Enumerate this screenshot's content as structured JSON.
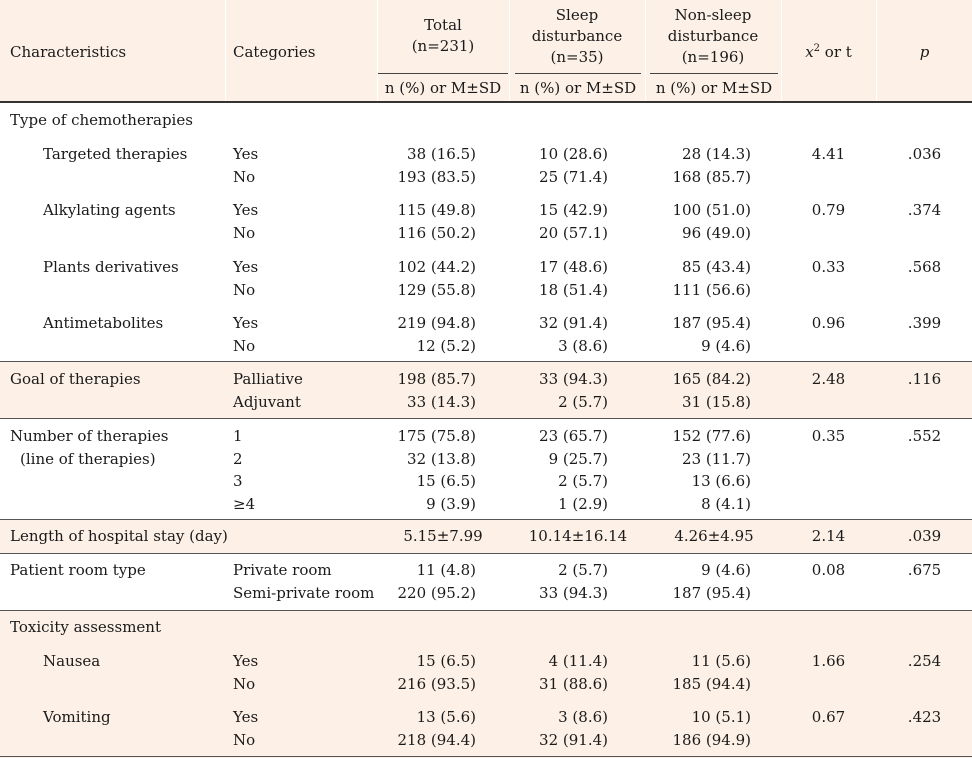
{
  "header": {
    "characteristics": "Characteristics",
    "categories": "Categories",
    "total_line1": "Total",
    "total_line2": "(n=231)",
    "sleep_line1": "Sleep",
    "sleep_line2": "disturbance",
    "sleep_line3": "(n=35)",
    "nonsleep_line1": "Non-sleep",
    "nonsleep_line2": "disturbance",
    "nonsleep_line3": "(n=196)",
    "chi_symbol": "x",
    "chi_sup": "2",
    "chi_rest": " or t",
    "p": "p",
    "sub_total": "n (%) or M±SD",
    "sub_sleep": "n (%) or M±SD",
    "sub_nonsleep": "n (%) or M±SD"
  },
  "groups": [
    {
      "label": "Type of chemotherapies"
    },
    {
      "label": "Targeted therapies",
      "categories": [
        "Yes",
        "No"
      ],
      "total": [
        "38 (16.5)",
        "193 (83.5)"
      ],
      "sleep": [
        "10 (28.6)",
        "25 (71.4)"
      ],
      "nonsleep": [
        "28 (14.3)",
        "168 (85.7)"
      ],
      "stat": "4.41",
      "p": ".036"
    },
    {
      "label": "Alkylating agents",
      "categories": [
        "Yes",
        "No"
      ],
      "total": [
        "115 (49.8)",
        "116 (50.2)"
      ],
      "sleep": [
        "15 (42.9)",
        "20 (57.1)"
      ],
      "nonsleep": [
        "100 (51.0)",
        "96 (49.0)"
      ],
      "stat": "0.79",
      "p": ".374"
    },
    {
      "label": "Plants derivatives",
      "categories": [
        "Yes",
        "No"
      ],
      "total": [
        "102 (44.2)",
        "129 (55.8)"
      ],
      "sleep": [
        "17 (48.6)",
        "18 (51.4)"
      ],
      "nonsleep": [
        "85 (43.4)",
        "111 (56.6)"
      ],
      "stat": "0.33",
      "p": ".568"
    },
    {
      "label": "Antimetabolites",
      "categories": [
        "Yes",
        "No"
      ],
      "total": [
        "219 (94.8)",
        "12 (5.2)"
      ],
      "sleep": [
        "32 (91.4)",
        "3 (8.6)"
      ],
      "nonsleep": [
        "187 (95.4)",
        "9 (4.6)"
      ],
      "stat": "0.96",
      "p": ".399"
    },
    {
      "label": "Goal of therapies",
      "categories": [
        "Palliative",
        "Adjuvant"
      ],
      "total": [
        "198 (85.7)",
        "33 (14.3)"
      ],
      "sleep": [
        "33 (94.3)",
        "2 (5.7)"
      ],
      "nonsleep": [
        "165 (84.2)",
        "31 (15.8)"
      ],
      "stat": "2.48",
      "p": ".116"
    },
    {
      "label": "Number of therapies",
      "label2": "(line of therapies)",
      "categories": [
        "1",
        "2",
        "3",
        "≥4"
      ],
      "total": [
        "175 (75.8)",
        "32 (13.8)",
        "15 (6.5)",
        "9 (3.9)"
      ],
      "sleep": [
        "23 (65.7)",
        "9 (25.7)",
        "2 (5.7)",
        "1 (2.9)"
      ],
      "nonsleep": [
        "152 (77.6)",
        "23 (11.7)",
        "13 (6.6)",
        "8 (4.1)"
      ],
      "stat": "0.35",
      "p": ".552"
    },
    {
      "label": "Length of hospital stay (day)",
      "total": "5.15±7.99",
      "sleep": "10.14±16.14",
      "nonsleep": "4.26±4.95",
      "stat": "2.14",
      "p": ".039"
    },
    {
      "label": "Patient room type",
      "categories": [
        "Private room",
        "Semi-private room"
      ],
      "total": [
        "11 (4.8)",
        "220 (95.2)"
      ],
      "sleep": [
        "2 (5.7)",
        "33 (94.3)"
      ],
      "nonsleep": [
        "9 (4.6)",
        "187 (95.4)"
      ],
      "stat": "0.08",
      "p": ".675"
    },
    {
      "label": "Toxicity assessment"
    },
    {
      "label": "Nausea",
      "categories": [
        "Yes",
        "No"
      ],
      "total": [
        "15 (6.5)",
        "216 (93.5)"
      ],
      "sleep": [
        "4 (11.4)",
        "31 (88.6)"
      ],
      "nonsleep": [
        "11 (5.6)",
        "185 (94.4)"
      ],
      "stat": "1.66",
      "p": ".254"
    },
    {
      "label": "Vomiting",
      "categories": [
        "Yes",
        "No"
      ],
      "total": [
        "13 (5.6)",
        "218 (94.4)"
      ],
      "sleep": [
        "3 (8.6)",
        "32 (91.4)"
      ],
      "nonsleep": [
        "10 (5.1)",
        "186 (94.9)"
      ],
      "stat": "0.67",
      "p": ".423"
    }
  ]
}
